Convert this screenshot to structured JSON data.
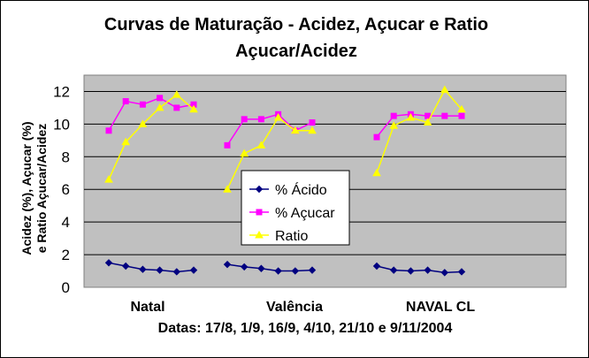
{
  "chart_data": {
    "type": "line",
    "title_lines": [
      "Curvas de Maturação - Acidez, Açucar e Ratio",
      "Açucar/Acidez"
    ],
    "ylabel_lines": [
      "Acidez (%), Açucar (%)",
      "e Ratio Açucar/Acidez"
    ],
    "xlabel": "Datas: 17/8, 1/9, 16/9, 4/10, 21/10 e 9/11/2004",
    "ylim": [
      0,
      13
    ],
    "yticks": [
      "0",
      "2",
      "4",
      "6",
      "8",
      "10",
      "12"
    ],
    "grid": true,
    "legend_position": "center",
    "plot_background": "#c0c0c0",
    "groups": [
      "Natal",
      "Valência",
      "NAVAL CL"
    ],
    "series": [
      {
        "name": "% Ácido",
        "color": "#000080",
        "marker": "diamond",
        "groups": [
          [
            1.5,
            1.3,
            1.1,
            1.05,
            0.95,
            1.05
          ],
          [
            1.4,
            1.25,
            1.15,
            1.0,
            1.0,
            1.05
          ],
          [
            1.3,
            1.05,
            1.0,
            1.05,
            0.9,
            0.95
          ]
        ]
      },
      {
        "name": "% Açucar",
        "color": "#ff00ff",
        "marker": "square",
        "groups": [
          [
            9.6,
            11.4,
            11.2,
            11.6,
            11.0,
            11.2
          ],
          [
            8.7,
            10.3,
            10.3,
            10.6,
            9.6,
            10.1
          ],
          [
            9.2,
            10.5,
            10.6,
            10.5,
            10.5,
            10.5
          ]
        ]
      },
      {
        "name": "Ratio",
        "color": "#ffff00",
        "marker": "triangle",
        "groups": [
          [
            6.6,
            8.9,
            10.0,
            11.0,
            11.8,
            10.9
          ],
          [
            6.0,
            8.2,
            8.7,
            10.4,
            9.6,
            9.6
          ],
          [
            7.0,
            9.9,
            10.4,
            10.1,
            12.1,
            10.9
          ]
        ]
      }
    ]
  }
}
